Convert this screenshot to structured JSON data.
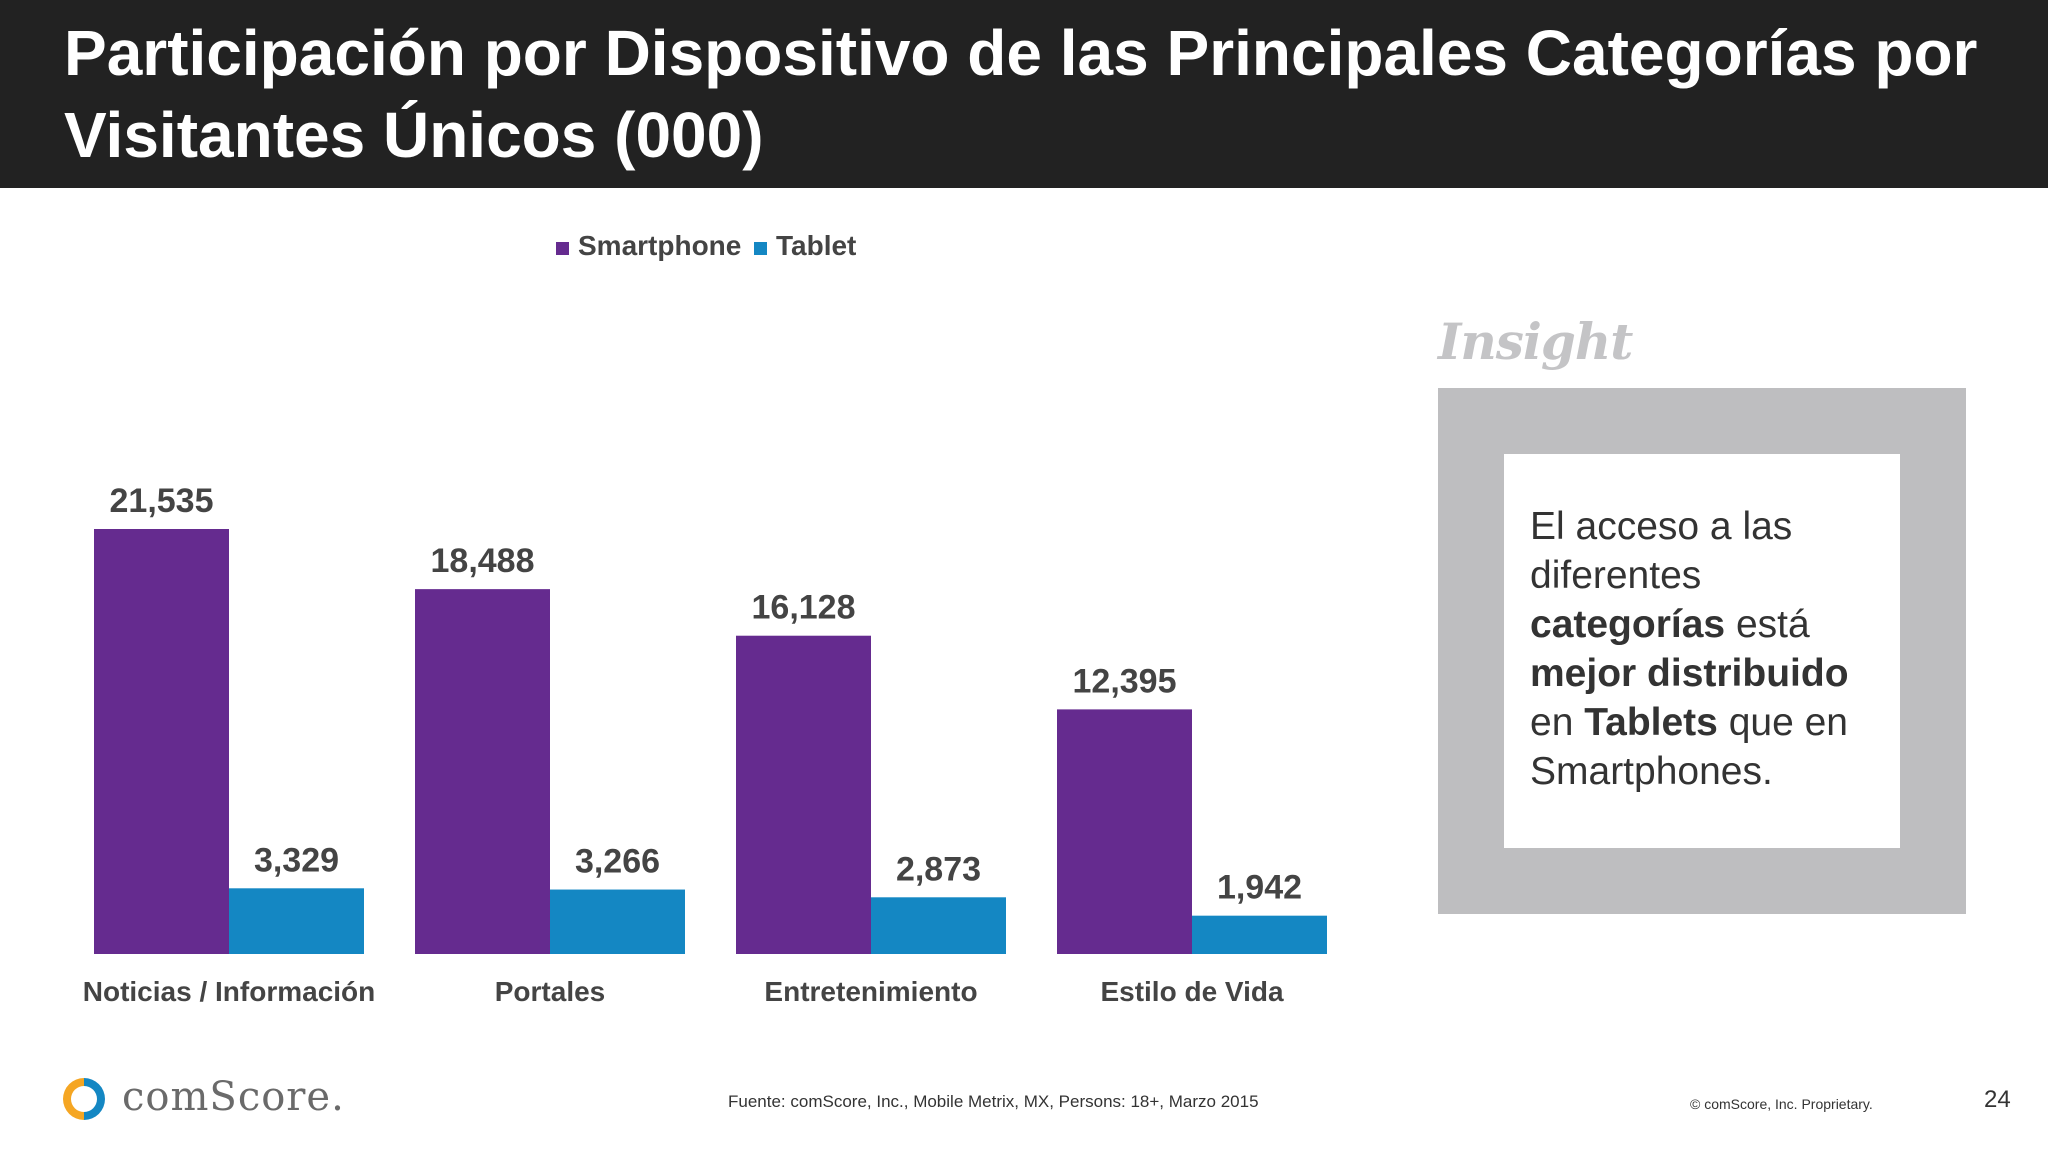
{
  "title": "Participación por Dispositivo de las Principales Categorías por Visitantes Únicos (000)",
  "chart_data": {
    "type": "bar",
    "categories": [
      "Noticias / Información",
      "Portales",
      "Entretenimiento",
      "Estilo de Vida"
    ],
    "series": [
      {
        "name": "Smartphone",
        "color": "#652b8f",
        "values": [
          21535,
          18488,
          16128,
          12395
        ],
        "labels": [
          "21,535",
          "18,488",
          "16,128",
          "12,395"
        ]
      },
      {
        "name": "Tablet",
        "color": "#1487c3",
        "values": [
          3329,
          3266,
          2873,
          1942
        ],
        "labels": [
          "3,329",
          "3,266",
          "2,873",
          "1,942"
        ]
      }
    ],
    "legend_position": "top",
    "ylim": [
      0,
      21535
    ],
    "grid": false
  },
  "insight": {
    "label": "Insight",
    "segments": [
      {
        "text": "El acceso a las diferentes ",
        "bold": false
      },
      {
        "text": "categorías",
        "bold": true
      },
      {
        "text": " está ",
        "bold": false
      },
      {
        "text": "mejor distribuido",
        "bold": true
      },
      {
        "text": " en ",
        "bold": false
      },
      {
        "text": "Tablets",
        "bold": true
      },
      {
        "text": " que en Smartphones.",
        "bold": false
      }
    ]
  },
  "footer": {
    "brand": "comScore.",
    "source": "Fuente: comScore, Inc., Mobile Metrix, MX, Persons: 18+, Marzo 2015",
    "copyright": "© comScore, Inc. Proprietary.",
    "page_number": "24"
  },
  "colors": {
    "title_bar": "#222222",
    "smartphone": "#652b8f",
    "tablet": "#1487c3",
    "insight_frame": "#bebec0",
    "logo_orange": "#f5a623",
    "logo_blue": "#1487c3"
  },
  "icons": {
    "logo": "comscore-logo-icon"
  }
}
